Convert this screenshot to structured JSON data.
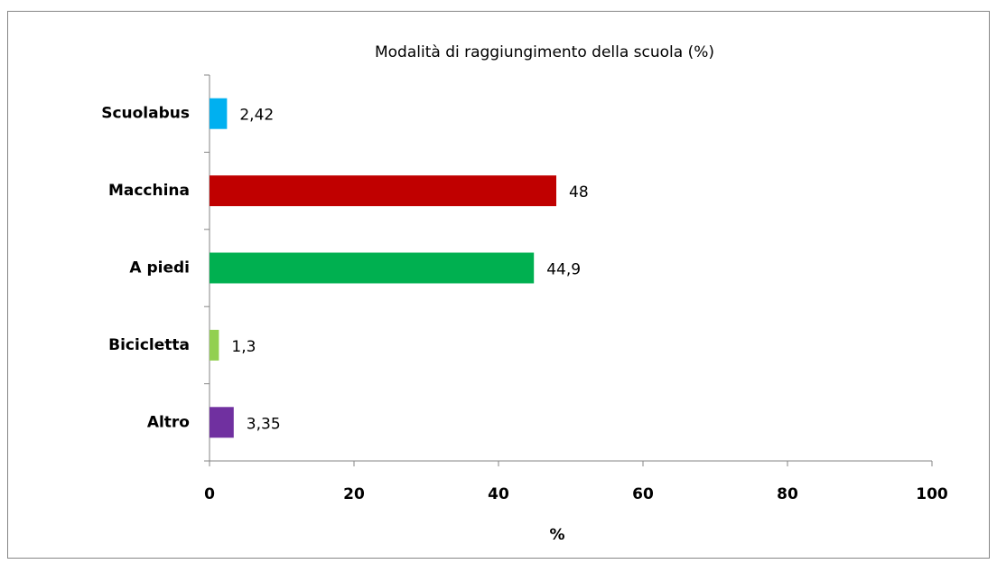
{
  "chart_data": {
    "type": "hbar",
    "title": "Modalità di raggiungimento della scuola (%)",
    "categories": [
      "Scuolabus",
      "Macchina",
      "A piedi",
      "Bicicletta",
      "Altro"
    ],
    "values": [
      2.42,
      48,
      44.9,
      1.3,
      3.35
    ],
    "value_labels": [
      "2,42",
      "48",
      "44,9",
      "1,3",
      "3,35"
    ],
    "colors": [
      "#00b0f0",
      "#c00000",
      "#00b050",
      "#92d050",
      "#7030a0"
    ],
    "xlabel": "%",
    "xlim": [
      0,
      100
    ],
    "xticks": [
      0,
      20,
      40,
      60,
      80,
      100
    ],
    "grid": false
  }
}
